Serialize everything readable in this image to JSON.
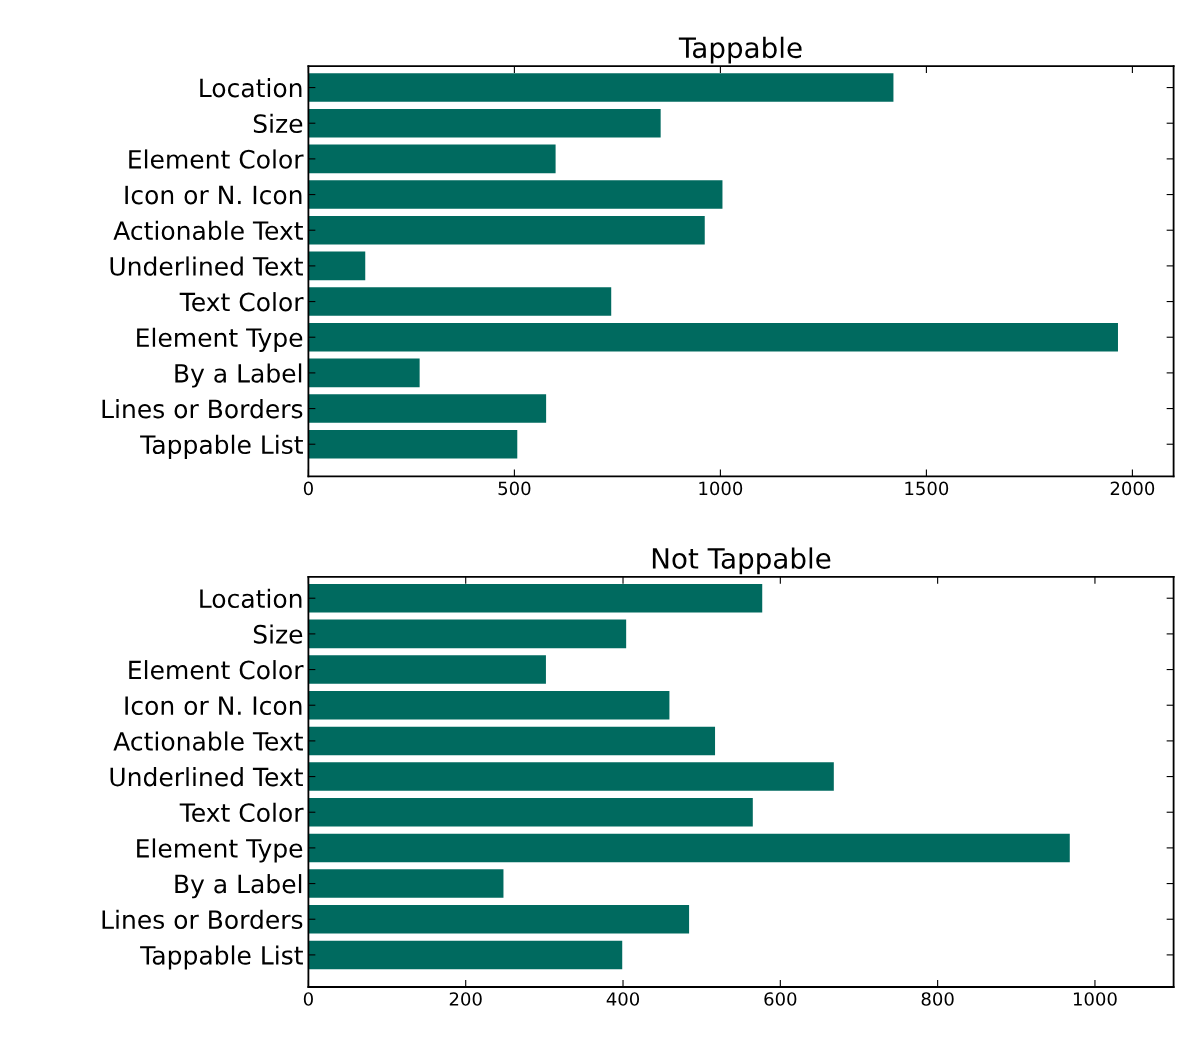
{
  "chart_data": [
    {
      "type": "bar",
      "orientation": "horizontal",
      "title": "Tappable",
      "color": "#006a5f",
      "categories": [
        "Location",
        "Size",
        "Element Color",
        "Icon or N. Icon",
        "Actionable Text",
        "Underlined Text",
        "Text Color",
        "Element Type",
        "By a Label",
        "Lines or Borders",
        "Tappable List"
      ],
      "values": [
        1420,
        855,
        600,
        1005,
        962,
        138,
        735,
        1965,
        270,
        577,
        507
      ],
      "xlim": [
        0,
        2100
      ],
      "xticks": [
        0,
        500,
        1000,
        1500,
        2000
      ],
      "grid": false,
      "legend": false
    },
    {
      "type": "bar",
      "orientation": "horizontal",
      "title": "Not Tappable",
      "color": "#006a5f",
      "categories": [
        "Location",
        "Size",
        "Element Color",
        "Icon or N. Icon",
        "Actionable Text",
        "Underlined Text",
        "Text Color",
        "Element Type",
        "By a Label",
        "Lines or Borders",
        "Tappable List"
      ],
      "values": [
        577,
        404,
        302,
        459,
        517,
        668,
        565,
        968,
        248,
        484,
        399
      ],
      "xlim": [
        0,
        1100
      ],
      "xticks": [
        0,
        200,
        400,
        600,
        800,
        1000
      ],
      "grid": false,
      "legend": false
    }
  ]
}
